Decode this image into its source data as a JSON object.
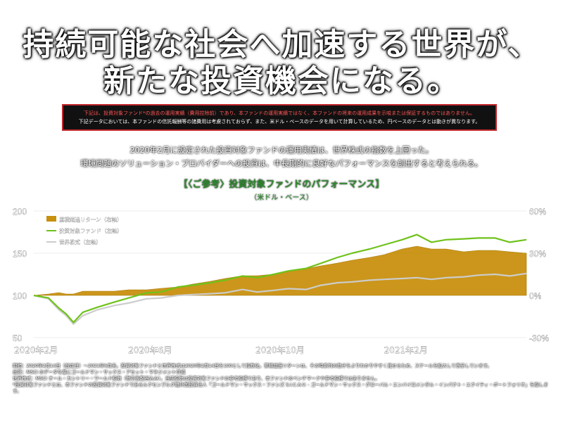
{
  "headline": {
    "line1": "持続可能な社会へ加速する世界が、",
    "line2": "新たな投資機会になる。"
  },
  "notice": {
    "line1": "下記は、投資対象ファンド*の過去の運用実績（費用控除前）であり、本ファンドの運用実績ではなく、本ファンドの将来の運用成果を示唆または保証するものではありません。",
    "line2": "下記データにおいては、本ファンドの信託報酬等の諸費用は考慮されておらず、また、米ドル・ベースのデータを用いて計算しているため、円ベースのデータとは動きが異なります。"
  },
  "summary": {
    "line1": "2020年2月に設定された投資対象ファンドの運用実績は、世界株式の指数を上回った。",
    "line2": "環境問題のソリューション・プロバイダーへの投資は、中長期的に良好なパフォーマンスを創出すると考えられる。"
  },
  "chart_heading": {
    "title": "【〈ご参考〉投資対象ファンドのパフォーマンス】",
    "subtitle": "（米ドル・ベース）"
  },
  "chart_data": {
    "type": "line",
    "x": [
      "2020-02-14",
      "2020-02-28",
      "2020-03-09",
      "2020-03-16",
      "2020-03-23",
      "2020-04-01",
      "2020-04-15",
      "2020-05-01",
      "2020-05-15",
      "2020-06-01",
      "2020-06-15",
      "2020-07-01",
      "2020-07-15",
      "2020-08-01",
      "2020-08-15",
      "2020-09-01",
      "2020-09-15",
      "2020-10-01",
      "2020-10-15",
      "2020-11-01",
      "2020-11-15",
      "2020-12-01",
      "2020-12-15",
      "2021-01-01",
      "2021-01-15",
      "2021-02-01",
      "2021-02-15",
      "2021-03-01",
      "2021-03-15",
      "2021-04-01",
      "2021-04-15",
      "2021-05-01",
      "2021-05-15",
      "2021-05-31"
    ],
    "x_ticks": [
      "2020年2月",
      "2020年6月",
      "2020年10月",
      "2021年2月"
    ],
    "y_left": {
      "min": 50,
      "max": 200,
      "ticks": [
        50,
        100,
        150,
        200
      ]
    },
    "y_right": {
      "min": -30,
      "max": 60,
      "tick_labels": [
        "-30%",
        "0%",
        "30%",
        "60%"
      ]
    },
    "series": [
      {
        "name": "累積超過リターン（右軸）",
        "type": "area",
        "axis": "right",
        "color": "#c8900f",
        "values": [
          0,
          1,
          2,
          1,
          1,
          3,
          3,
          3,
          4,
          4,
          5,
          6,
          8,
          10,
          12,
          14,
          14,
          15,
          17,
          19,
          21,
          23,
          25,
          27,
          29,
          33,
          35,
          33,
          33,
          31,
          32,
          32,
          31,
          30
        ]
      },
      {
        "name": "投資対象ファンド（左軸）",
        "type": "line",
        "axis": "left",
        "color": "#6fc21b",
        "values": [
          100,
          97,
          85,
          78,
          68,
          80,
          86,
          92,
          97,
          103,
          104,
          110,
          112,
          115,
          118,
          123,
          121,
          125,
          129,
          132,
          138,
          145,
          150,
          155,
          160,
          166,
          172,
          163,
          166,
          167,
          168,
          168,
          163,
          166
        ]
      },
      {
        "name": "世界株式（左軸）",
        "type": "line",
        "axis": "left",
        "color": "#cccccc",
        "values": [
          100,
          96,
          83,
          76,
          66,
          76,
          83,
          88,
          91,
          96,
          97,
          100,
          101,
          102,
          103,
          107,
          104,
          106,
          108,
          107,
          112,
          115,
          116,
          118,
          119,
          120,
          121,
          119,
          121,
          122,
          124,
          125,
          123,
          126
        ]
      }
    ]
  },
  "footnotes": {
    "line1": "期間：2020年2月14日（設定日）～2021年5月末。投資対象ファンドと世界株式は2020年2月14日を100として指数化。累積超過リターンは、その時系列の動きをよりわかりやすく見せるため、スケールを拡大して表示しています。",
    "line2": "出所：MSCI のデータを基にゴールドマン・サックス・アセット・マネジメント作成",
    "line3": "世界株式：MSCI オール・カントリー・ワールド指数（税引後配当込み）。当該指数は投資対象ファンドの参考指標であり、本ファンドのベンチマークや参考指標ではありません。",
    "line4": "*投資対象ファンドとは、本ファンドの投資対象ファンドであるルクセンブルグ籍外国投資法人「ゴールドマン・サックス・ファンズ S.I.C.A.V. - ゴールドマン・サックス・グローバル・エンバイロメンタル・インパクト・エクイティ・ポートフォリオ」を指します。"
  }
}
